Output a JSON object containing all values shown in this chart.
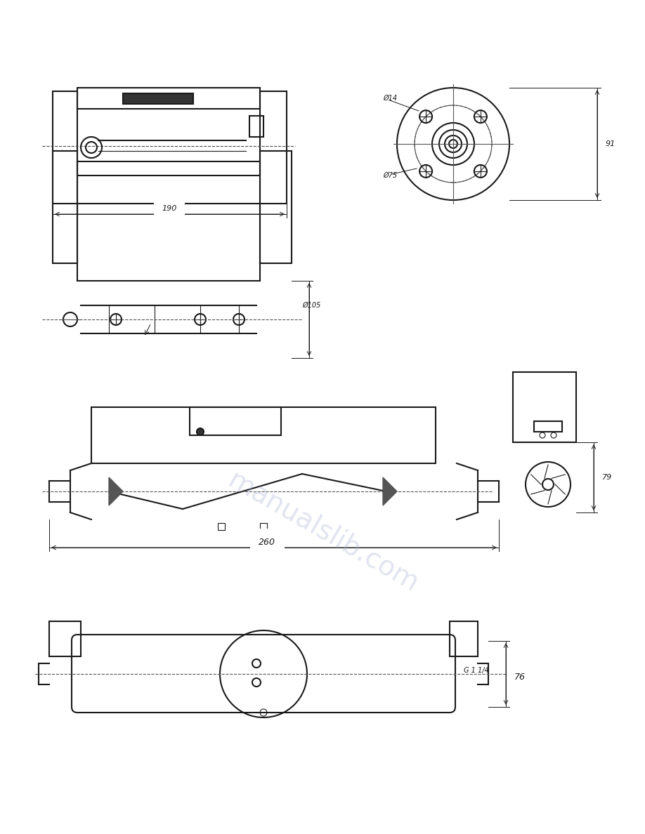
{
  "background_color": "#ffffff",
  "line_color": "#1a1a1a",
  "dim_color": "#1a1a1a",
  "watermark_color": "#aab4d4",
  "watermark_text": "manualslib.com",
  "watermark_alpha": 0.35,
  "page_width": 9.18,
  "page_height": 11.88,
  "diagram1": {
    "label_190": "190",
    "dim_note": "Ø75"
  },
  "diagram2": {
    "label_105": "Ø105"
  },
  "diagram3": {
    "label_260": "260",
    "label_79": "79"
  },
  "diagram4": {
    "label_76": "76",
    "label_g114": "G 1 1/4"
  }
}
